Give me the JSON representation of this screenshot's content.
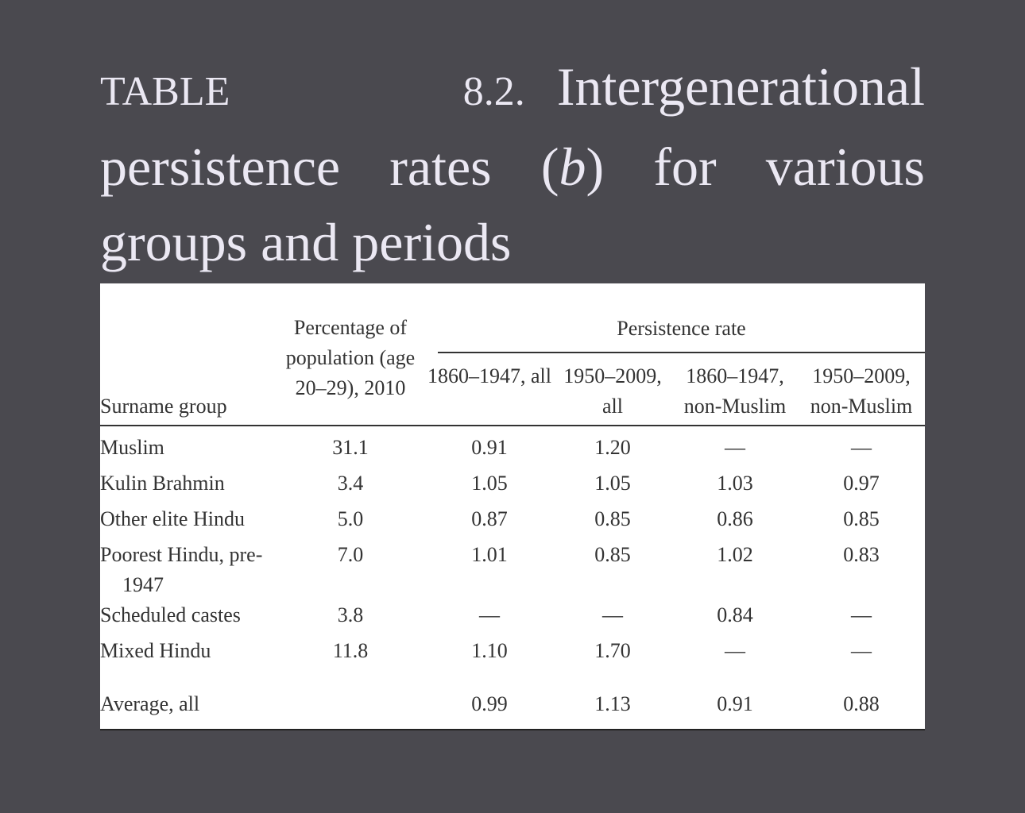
{
  "title": {
    "label": "TABLE 8.2.",
    "before": "Intergenerational persistence rates (",
    "italic": "b",
    "after": ") for various groups and periods"
  },
  "table": {
    "header": {
      "surname": "Surname group",
      "percentage": "Percentage of population (age 20–29), 2010",
      "persistence": "Persistence rate",
      "periods": [
        "1860–1947, all",
        "1950–2009, all",
        "1860–1947, non-Muslim",
        "1950–2009, non-Muslim"
      ]
    },
    "rows": [
      [
        "Muslim",
        "31.1",
        "0.91",
        "1.20",
        "—",
        "—"
      ],
      [
        "Kulin Brahmin",
        "3.4",
        "1.05",
        "1.05",
        "1.03",
        "0.97"
      ],
      [
        "Other elite Hindu",
        "5.0",
        "0.87",
        "0.85",
        "0.86",
        "0.85"
      ],
      [
        "Poorest Hindu, pre-1947",
        "7.0",
        "1.01",
        "0.85",
        "1.02",
        "0.83"
      ],
      [
        "Scheduled castes",
        "3.8",
        "—",
        "—",
        "0.84",
        "—"
      ],
      [
        "Mixed Hindu",
        "11.8",
        "1.10",
        "1.70",
        "—",
        "—"
      ],
      [
        "Average, all",
        "",
        "0.99",
        "1.13",
        "0.91",
        "0.88"
      ]
    ]
  }
}
